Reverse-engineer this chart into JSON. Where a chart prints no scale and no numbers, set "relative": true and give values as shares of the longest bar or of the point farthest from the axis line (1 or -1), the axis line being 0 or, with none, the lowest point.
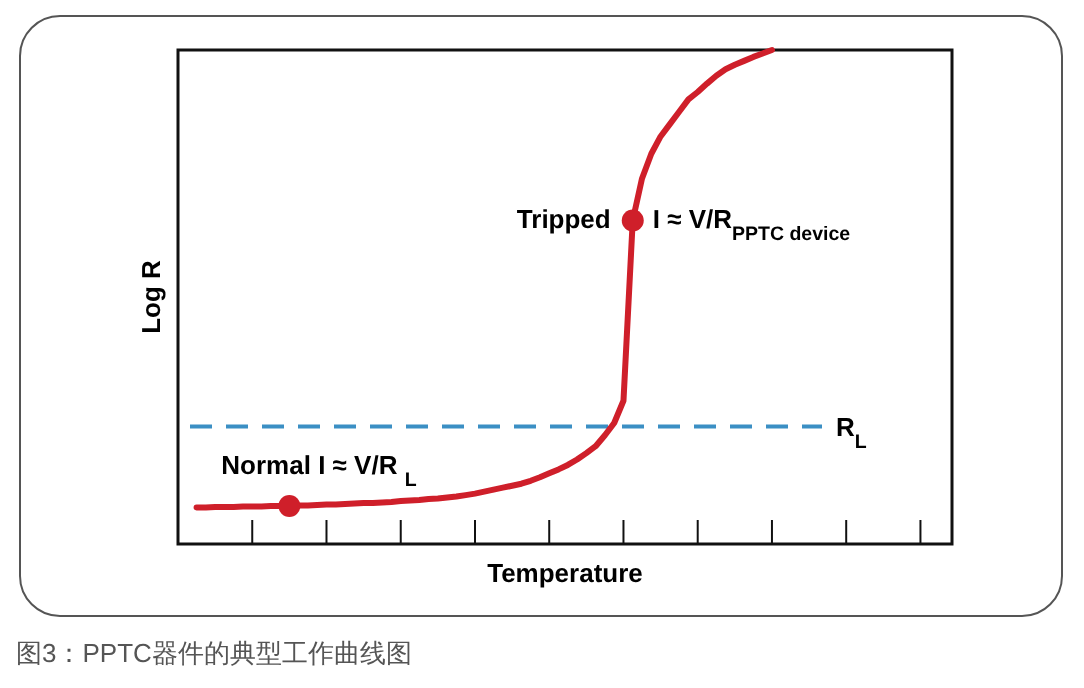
{
  "chart_data": {
    "type": "line",
    "relative": true,
    "xlabel": "Temperature",
    "ylabel": "Log R",
    "categories": [
      null,
      null,
      null,
      null,
      null,
      null,
      null,
      null,
      null,
      null,
      null,
      null,
      null,
      null,
      null,
      null,
      null,
      null,
      null,
      null,
      null,
      null,
      null,
      null,
      null,
      null,
      null,
      null,
      null,
      null,
      null,
      null,
      null,
      null,
      null,
      null,
      null,
      null,
      null,
      null,
      null,
      null,
      null,
      null,
      null,
      null,
      null,
      null,
      null,
      null,
      null,
      null,
      null,
      null,
      null,
      null,
      null,
      null,
      null,
      null,
      null,
      null,
      null
    ],
    "series": [
      {
        "color": "#cf1f2a",
        "values": [
          0.074,
          0.074,
          0.075,
          0.075,
          0.075,
          0.076,
          0.076,
          0.076,
          0.077,
          0.077,
          0.077,
          0.078,
          0.078,
          0.079,
          0.08,
          0.08,
          0.081,
          0.082,
          0.083,
          0.083,
          0.084,
          0.085,
          0.087,
          0.088,
          0.089,
          0.091,
          0.092,
          0.094,
          0.096,
          0.099,
          0.102,
          0.106,
          0.11,
          0.114,
          0.118,
          0.122,
          0.128,
          0.135,
          0.143,
          0.151,
          0.16,
          0.171,
          0.184,
          0.198,
          0.22,
          0.245,
          0.29,
          0.655,
          0.74,
          0.79,
          0.825,
          0.85,
          0.875,
          0.9,
          0.915,
          0.932,
          0.948,
          0.961,
          0.97,
          0.978,
          0.986,
          0.993,
          1
        ]
      }
    ],
    "ref_lines": [
      {
        "axis": "y",
        "value": 0.238,
        "label": "R$_{L}$",
        "color": "#3b8fc4",
        "line_style": "dashed"
      }
    ],
    "annotations": [
      "Tripped",
      "I ≈ V/R$_{PPTC device}$",
      {
        "text": "Normal I ≈ V/R $_{L}$",
        "y": 0.077
      },
      "图3：PPTC器件的典型工作曲线图"
    ]
  }
}
